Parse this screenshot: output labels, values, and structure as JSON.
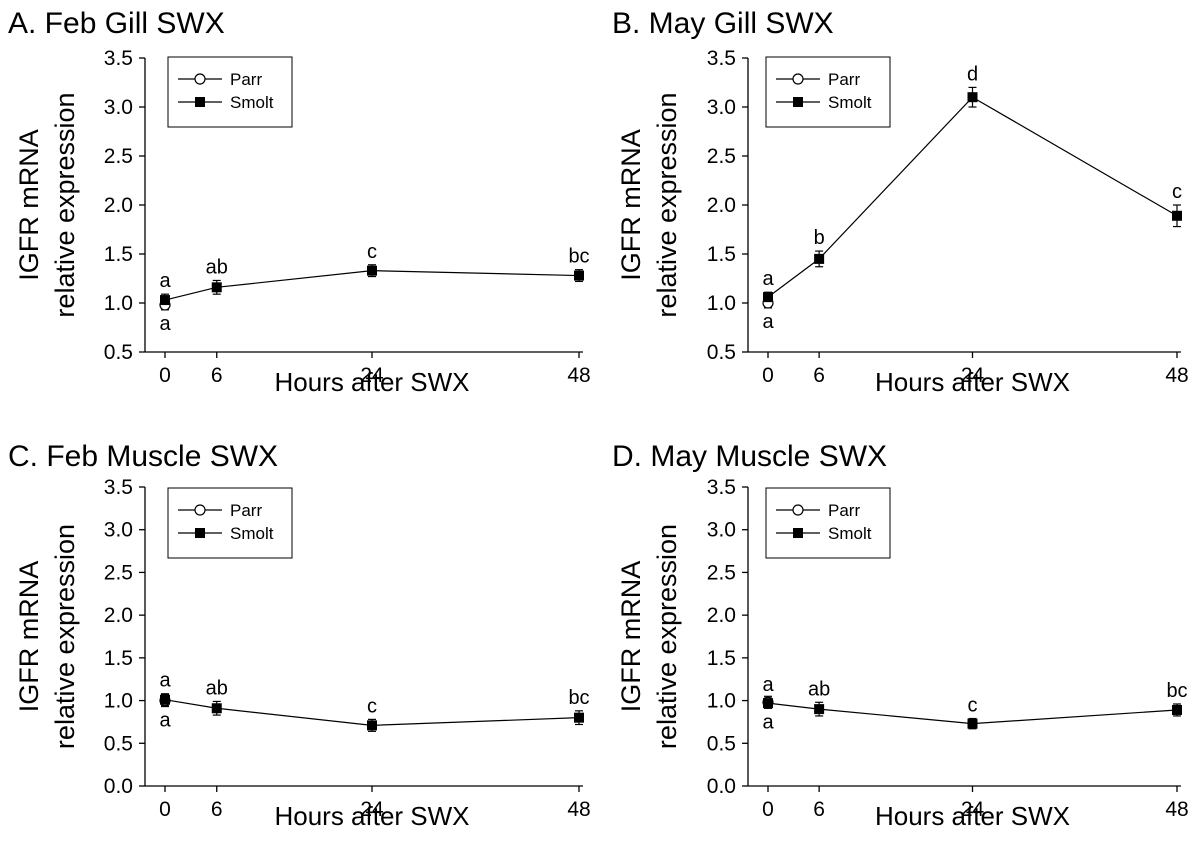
{
  "chart_data": [
    {
      "type": "line",
      "title": "A. Feb Gill SWX",
      "xlabel": "Hours after SWX",
      "ylabel": [
        "IGFR mRNA",
        "relative expression"
      ],
      "x": [
        0,
        6,
        24,
        48
      ],
      "xticks": [
        "0",
        "6",
        "24",
        "48"
      ],
      "ylim": [
        0.5,
        3.5
      ],
      "yticks": [
        "0.5",
        "1.0",
        "1.5",
        "2.0",
        "2.5",
        "3.0",
        "3.5"
      ],
      "legend": [
        "Parr",
        "Smolt"
      ],
      "legend_position": "top-left",
      "series": [
        {
          "name": "Parr",
          "marker": "open-circle",
          "values": [
            0.98,
            null,
            null,
            null
          ],
          "errors": [
            0.05,
            null,
            null,
            null
          ]
        },
        {
          "name": "Smolt",
          "marker": "filled-square",
          "values": [
            1.03,
            1.16,
            1.33,
            1.28
          ],
          "errors": [
            0.06,
            0.07,
            0.06,
            0.06
          ]
        }
      ],
      "annotations": [
        {
          "x": 0,
          "label": "a",
          "position": "above"
        },
        {
          "x": 0,
          "label": "a",
          "position": "below"
        },
        {
          "x": 6,
          "label": "ab",
          "position": "above"
        },
        {
          "x": 24,
          "label": "c",
          "position": "above"
        },
        {
          "x": 48,
          "label": "bc",
          "position": "above"
        }
      ]
    },
    {
      "type": "line",
      "title": "B. May Gill SWX",
      "xlabel": "Hours after SWX",
      "ylabel": [
        "IGFR mRNA",
        "relative expression"
      ],
      "x": [
        0,
        6,
        24,
        48
      ],
      "xticks": [
        "0",
        "6",
        "24",
        "48"
      ],
      "ylim": [
        0.5,
        3.5
      ],
      "yticks": [
        "0.5",
        "1.0",
        "1.5",
        "2.0",
        "2.5",
        "3.0",
        "3.5"
      ],
      "legend": [
        "Parr",
        "Smolt"
      ],
      "legend_position": "top-left",
      "series": [
        {
          "name": "Parr",
          "marker": "open-circle",
          "values": [
            1.0,
            null,
            null,
            null
          ],
          "errors": [
            0.05,
            null,
            null,
            null
          ]
        },
        {
          "name": "Smolt",
          "marker": "filled-square",
          "values": [
            1.06,
            1.45,
            3.1,
            1.89
          ],
          "errors": [
            0.05,
            0.08,
            0.1,
            0.11
          ]
        }
      ],
      "annotations": [
        {
          "x": 0,
          "label": "a",
          "position": "above"
        },
        {
          "x": 0,
          "label": "a",
          "position": "below"
        },
        {
          "x": 6,
          "label": "b",
          "position": "above"
        },
        {
          "x": 24,
          "label": "d",
          "position": "above"
        },
        {
          "x": 48,
          "label": "c",
          "position": "above"
        }
      ]
    },
    {
      "type": "line",
      "title": "C. Feb Muscle SWX",
      "xlabel": "Hours after SWX",
      "ylabel": [
        "IGFR mRNA",
        "relative expression"
      ],
      "x": [
        0,
        6,
        24,
        48
      ],
      "xticks": [
        "0",
        "6",
        "24",
        "48"
      ],
      "ylim": [
        0.0,
        3.5
      ],
      "yticks": [
        "0.0",
        "0.5",
        "1.0",
        "1.5",
        "2.0",
        "2.5",
        "3.0",
        "3.5"
      ],
      "legend": [
        "Parr",
        "Smolt"
      ],
      "legend_position": "top-left",
      "series": [
        {
          "name": "Parr",
          "marker": "open-circle",
          "values": [
            1.0,
            null,
            null,
            null
          ],
          "errors": [
            0.07,
            null,
            null,
            null
          ]
        },
        {
          "name": "Smolt",
          "marker": "filled-square",
          "values": [
            1.01,
            0.91,
            0.71,
            0.8
          ],
          "errors": [
            0.07,
            0.08,
            0.07,
            0.08
          ]
        }
      ],
      "annotations": [
        {
          "x": 0,
          "label": "a",
          "position": "above"
        },
        {
          "x": 0,
          "label": "a",
          "position": "below"
        },
        {
          "x": 6,
          "label": "ab",
          "position": "above"
        },
        {
          "x": 24,
          "label": "c",
          "position": "above"
        },
        {
          "x": 48,
          "label": "bc",
          "position": "above"
        }
      ]
    },
    {
      "type": "line",
      "title": "D. May Muscle SWX",
      "xlabel": "Hours after SWX",
      "ylabel": [
        "IGFR mRNA",
        "relative expression"
      ],
      "x": [
        0,
        6,
        24,
        48
      ],
      "xticks": [
        "0",
        "6",
        "24",
        "48"
      ],
      "ylim": [
        0.0,
        3.5
      ],
      "yticks": [
        "0.0",
        "0.5",
        "1.0",
        "1.5",
        "2.0",
        "2.5",
        "3.0",
        "3.5"
      ],
      "legend": [
        "Parr",
        "Smolt"
      ],
      "legend_position": "top-left",
      "series": [
        {
          "name": "Parr",
          "marker": "open-circle",
          "values": [
            0.98,
            null,
            null,
            null
          ],
          "errors": [
            0.07,
            null,
            null,
            null
          ]
        },
        {
          "name": "Smolt",
          "marker": "filled-square",
          "values": [
            0.97,
            0.9,
            0.73,
            0.89
          ],
          "errors": [
            0.06,
            0.08,
            0.06,
            0.07
          ]
        }
      ],
      "annotations": [
        {
          "x": 0,
          "label": "a",
          "position": "above"
        },
        {
          "x": 0,
          "label": "a",
          "position": "below"
        },
        {
          "x": 6,
          "label": "ab",
          "position": "above"
        },
        {
          "x": 24,
          "label": "c",
          "position": "above"
        },
        {
          "x": 48,
          "label": "bc",
          "position": "above"
        }
      ]
    }
  ]
}
